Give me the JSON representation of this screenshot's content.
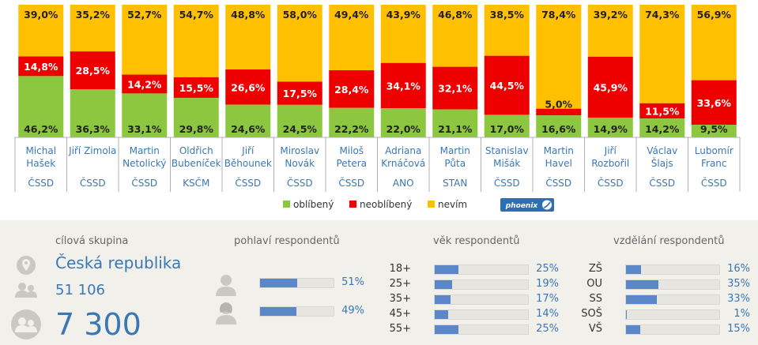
{
  "chart_data": {
    "type": "bar",
    "stacked": true,
    "categories": [
      {
        "first": "Michal",
        "last": "Hašek",
        "party": "ČSSD"
      },
      {
        "first": "Jiří Zimola",
        "last": "",
        "party": "ČSSD"
      },
      {
        "first": "Martin",
        "last": "Netolický",
        "party": "ČSSD"
      },
      {
        "first": "Oldřich",
        "last": "Bubeníček",
        "party": "KSČM"
      },
      {
        "first": "Jiří",
        "last": "Běhounek",
        "party": "ČSSD"
      },
      {
        "first": "Miroslav",
        "last": "Novák",
        "party": "ČSSD"
      },
      {
        "first": "Miloš",
        "last": "Petera",
        "party": "ČSSD"
      },
      {
        "first": "Adriana",
        "last": "Krnáčová",
        "party": "ANO"
      },
      {
        "first": "Martin",
        "last": "Půta",
        "party": "STAN"
      },
      {
        "first": "Stanislav",
        "last": "Mišák",
        "party": "ČSSD"
      },
      {
        "first": "Martin",
        "last": "Havel",
        "party": "ČSSD"
      },
      {
        "first": "Jiří",
        "last": "Rozbořil",
        "party": "ČSSD"
      },
      {
        "first": "Václav",
        "last": "Šlajs",
        "party": "ČSSD"
      },
      {
        "first": "Lubomír",
        "last": "Franc",
        "party": "ČSSD"
      }
    ],
    "series": [
      {
        "name": "oblíbený",
        "color": "#8dc63f",
        "values": [
          46.2,
          36.3,
          33.1,
          29.8,
          24.6,
          24.5,
          22.2,
          22.0,
          21.1,
          17.0,
          16.6,
          14.9,
          14.2,
          9.5
        ],
        "labels": [
          "46,2%",
          "36,3%",
          "33,1%",
          "29,8%",
          "24,6%",
          "24,5%",
          "22,2%",
          "22,0%",
          "21,1%",
          "17,0%",
          "16,6%",
          "14,9%",
          "14,2%",
          "9,5%"
        ]
      },
      {
        "name": "neoblíbený",
        "color": "#ee0000",
        "values": [
          14.8,
          28.5,
          14.2,
          15.5,
          26.6,
          17.5,
          28.4,
          34.1,
          32.1,
          44.5,
          5.0,
          45.9,
          11.5,
          33.6
        ],
        "labels": [
          "14,8%",
          "28,5%",
          "14,2%",
          "15,5%",
          "26,6%",
          "17,5%",
          "28,4%",
          "34,1%",
          "32,1%",
          "44,5%",
          "5,0%",
          "45,9%",
          "11,5%",
          "33,6%"
        ]
      },
      {
        "name": "nevím",
        "color": "#ffc000",
        "values": [
          39.0,
          35.2,
          52.7,
          54.7,
          48.8,
          58.0,
          49.4,
          43.9,
          46.8,
          38.5,
          78.4,
          39.2,
          74.3,
          56.9
        ],
        "labels": [
          "39,0%",
          "35,2%",
          "52,7%",
          "54,7%",
          "48,8%",
          "58,0%",
          "49,4%",
          "43,9%",
          "46,8%",
          "38,5%",
          "78,4%",
          "39,2%",
          "74,3%",
          "56,9%"
        ]
      }
    ],
    "ylim": [
      0,
      100
    ],
    "legend_position": "bottom"
  },
  "logo": {
    "text": "phoenix"
  },
  "target": {
    "title": "cílová skupina",
    "region": "Česká republika",
    "population": "51 106",
    "respondents": "7 300"
  },
  "gender": {
    "title": "pohlaví respondentů",
    "rows": [
      {
        "icon": "male-icon",
        "pct": "51%",
        "value": 51
      },
      {
        "icon": "female-icon",
        "pct": "49%",
        "value": 49
      }
    ]
  },
  "age": {
    "title": "věk respondentů",
    "rows": [
      {
        "label": "18+",
        "pct": "25%",
        "value": 25
      },
      {
        "label": "25+",
        "pct": "19%",
        "value": 19
      },
      {
        "label": "35+",
        "pct": "17%",
        "value": 17
      },
      {
        "label": "45+",
        "pct": "14%",
        "value": 14
      },
      {
        "label": "55+",
        "pct": "25%",
        "value": 25
      }
    ]
  },
  "education": {
    "title": "vzdělání respondentů",
    "rows": [
      {
        "label": "ZŠ",
        "pct": "16%",
        "value": 16
      },
      {
        "label": "OU",
        "pct": "35%",
        "value": 35
      },
      {
        "label": "SS",
        "pct": "33%",
        "value": 33
      },
      {
        "label": "SOŠ",
        "pct": "1%",
        "value": 1
      },
      {
        "label": "VŠ",
        "pct": "15%",
        "value": 15
      }
    ]
  },
  "colors": {
    "accent": "#3a78b5",
    "bar": "#5b87c8"
  }
}
